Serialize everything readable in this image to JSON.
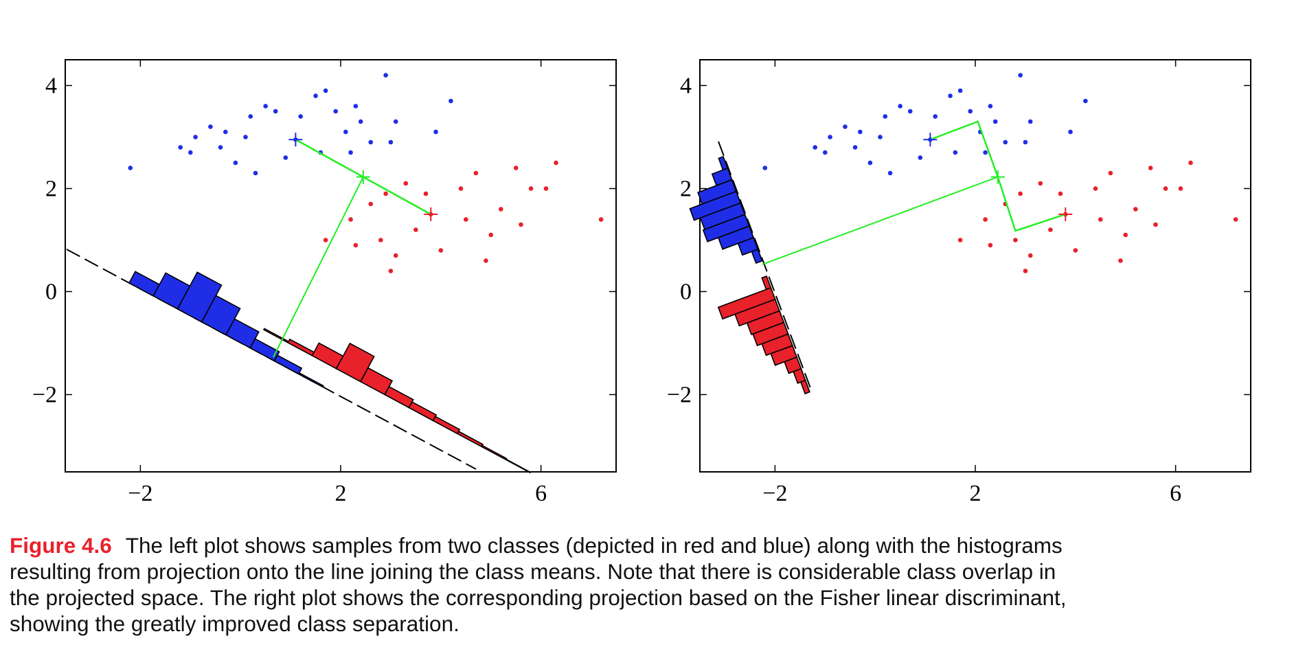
{
  "caption": {
    "label": "Figure 4.6",
    "lines": [
      "The left plot shows samples from two classes (depicted in red and blue) along with the histograms",
      "resulting from projection onto the line joining the class means. Note that there is considerable class overlap in",
      "the projected space. The right plot shows the corresponding projection based on the Fisher linear discriminant,",
      "showing the greatly improved class separation."
    ]
  },
  "colors": {
    "class_a": "#e8212b",
    "class_b": "#1f2ee6",
    "projection": "#22ee22",
    "axis": "#000000"
  },
  "chart_data": [
    {
      "type": "scatter",
      "panel": "left",
      "xlim": [
        -3.5,
        7.5
      ],
      "ylim": [
        -3.5,
        4.5
      ],
      "xticks": [
        -2,
        2,
        6
      ],
      "xtick_labels": [
        "−2",
        "2",
        "6"
      ],
      "yticks": [
        -2,
        0,
        2,
        4
      ],
      "ytick_labels": [
        "−2",
        "0",
        "2",
        "4"
      ],
      "grid": false,
      "series": [
        {
          "color": "blue",
          "points": [
            [
              1.1,
              2.95
            ],
            [
              0.2,
              3.4
            ],
            [
              -0.3,
              3.1
            ],
            [
              0.5,
              3.6
            ],
            [
              1.5,
              3.8
            ],
            [
              2.1,
              3.1
            ],
            [
              2.6,
              2.9
            ],
            [
              3.1,
              3.3
            ],
            [
              3.9,
              3.1
            ],
            [
              0.9,
              2.6
            ],
            [
              1.6,
              2.7
            ],
            [
              -1.2,
              2.8
            ],
            [
              -0.6,
              3.2
            ],
            [
              -0.9,
              3.0
            ],
            [
              -0.1,
              2.5
            ],
            [
              0.7,
              3.5
            ],
            [
              1.9,
              3.5
            ],
            [
              2.4,
              3.3
            ],
            [
              3.0,
              2.9
            ],
            [
              -2.2,
              2.4
            ],
            [
              -1.0,
              2.7
            ],
            [
              0.3,
              2.3
            ],
            [
              1.2,
              3.4
            ],
            [
              2.3,
              3.6
            ],
            [
              2.9,
              4.2
            ],
            [
              4.2,
              3.7
            ],
            [
              1.7,
              3.9
            ],
            [
              2.2,
              2.7
            ],
            [
              -0.4,
              2.8
            ],
            [
              0.1,
              3.0
            ]
          ]
        },
        {
          "color": "red",
          "points": [
            [
              3.8,
              1.5
            ],
            [
              2.8,
              1.0
            ],
            [
              4.4,
              2.0
            ],
            [
              5.2,
              1.6
            ],
            [
              3.1,
              0.7
            ],
            [
              4.7,
              2.3
            ],
            [
              5.8,
              2.0
            ],
            [
              6.3,
              2.5
            ],
            [
              2.6,
              1.7
            ],
            [
              3.5,
              1.2
            ],
            [
              4.0,
              0.8
            ],
            [
              5.0,
              1.1
            ],
            [
              3.3,
              2.1
            ],
            [
              2.9,
              1.9
            ],
            [
              4.9,
              0.6
            ],
            [
              3.7,
              1.9
            ],
            [
              5.5,
              2.4
            ],
            [
              7.2,
              1.4
            ],
            [
              1.7,
              1.0
            ],
            [
              2.3,
              0.9
            ],
            [
              4.5,
              1.4
            ],
            [
              3.0,
              0.4
            ],
            [
              5.6,
              1.3
            ],
            [
              6.1,
              2.0
            ],
            [
              2.2,
              1.4
            ]
          ]
        }
      ],
      "class_means": {
        "blue": [
          1.1,
          2.95
        ],
        "red": [
          3.8,
          1.5
        ]
      },
      "histograms": {
        "blue": [
          0.5,
          1.0,
          1.6,
          1.15,
          0.7,
          0.4,
          0.25,
          0.05
        ],
        "red": [
          0.05,
          0.15,
          0.55,
          1.1,
          0.6,
          0.35,
          0.25,
          0.18,
          0.1,
          0.05,
          0.02
        ]
      }
    },
    {
      "type": "scatter",
      "panel": "right",
      "xlim": [
        -3.5,
        7.5
      ],
      "ylim": [
        -3.5,
        4.5
      ],
      "xticks": [
        -2,
        2,
        6
      ],
      "xtick_labels": [
        "−2",
        "2",
        "6"
      ],
      "yticks": [
        -2,
        0,
        2,
        4
      ],
      "ytick_labels": [
        "−2",
        "0",
        "2",
        "4"
      ],
      "grid": false,
      "class_means": {
        "blue": [
          1.1,
          2.95
        ],
        "red": [
          3.8,
          1.5
        ]
      },
      "histograms": {
        "blue": [
          0.15,
          0.5,
          1.1,
          1.5,
          1.3,
          1.35,
          1.0,
          0.5,
          0.2
        ],
        "red": [
          0.15,
          1.7,
          1.3,
          1.05,
          1.0,
          0.85,
          0.7,
          0.4,
          0.25,
          0.15
        ]
      }
    }
  ]
}
